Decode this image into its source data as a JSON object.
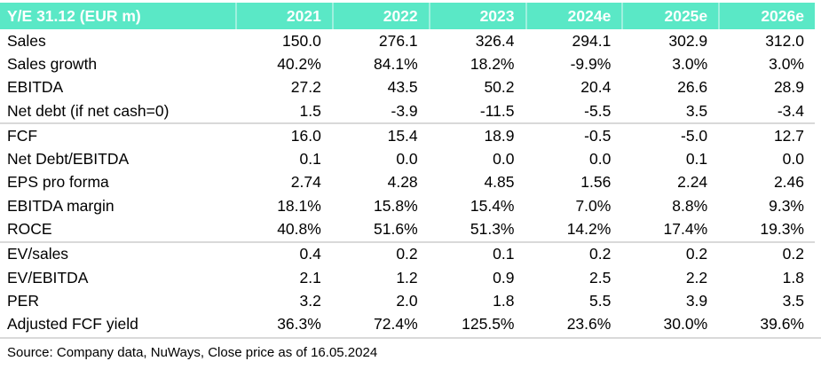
{
  "table": {
    "header": {
      "label": "Y/E 31.12 (EUR m)",
      "columns": [
        "2021",
        "2022",
        "2023",
        "2024e",
        "2025e",
        "2026e"
      ]
    },
    "sections": [
      {
        "rows": [
          {
            "label": "Sales",
            "values": [
              "150.0",
              "276.1",
              "326.4",
              "294.1",
              "302.9",
              "312.0"
            ]
          },
          {
            "label": "Sales growth",
            "values": [
              "40.2%",
              "84.1%",
              "18.2%",
              "-9.9%",
              "3.0%",
              "3.0%"
            ]
          },
          {
            "label": "EBITDA",
            "values": [
              "27.2",
              "43.5",
              "50.2",
              "20.4",
              "26.6",
              "28.9"
            ]
          },
          {
            "label": "Net debt (if net cash=0)",
            "values": [
              "1.5",
              "-3.9",
              "-11.5",
              "-5.5",
              "3.5",
              "-3.4"
            ]
          }
        ]
      },
      {
        "rows": [
          {
            "label": "FCF",
            "values": [
              "16.0",
              "15.4",
              "18.9",
              "-0.5",
              "-5.0",
              "12.7"
            ]
          },
          {
            "label": "Net Debt/EBITDA",
            "values": [
              "0.1",
              "0.0",
              "0.0",
              "0.0",
              "0.1",
              "0.0"
            ]
          },
          {
            "label": "EPS pro forma",
            "values": [
              "2.74",
              "4.28",
              "4.85",
              "1.56",
              "2.24",
              "2.46"
            ]
          },
          {
            "label": "EBITDA margin",
            "values": [
              "18.1%",
              "15.8%",
              "15.4%",
              "7.0%",
              "8.8%",
              "9.3%"
            ]
          },
          {
            "label": "ROCE",
            "values": [
              "40.8%",
              "51.6%",
              "51.3%",
              "14.2%",
              "17.4%",
              "19.3%"
            ]
          }
        ]
      },
      {
        "rows": [
          {
            "label": "EV/sales",
            "values": [
              "0.4",
              "0.2",
              "0.1",
              "0.2",
              "0.2",
              "0.2"
            ]
          },
          {
            "label": "EV/EBITDA",
            "values": [
              "2.1",
              "1.2",
              "0.9",
              "2.5",
              "2.2",
              "1.8"
            ]
          },
          {
            "label": "PER",
            "values": [
              "3.2",
              "2.0",
              "1.8",
              "5.5",
              "3.9",
              "3.5"
            ]
          },
          {
            "label": "Adjusted FCF yield",
            "values": [
              "36.3%",
              "72.4%",
              "125.5%",
              "23.6%",
              "30.0%",
              "39.6%"
            ]
          }
        ]
      }
    ],
    "source": "Source: Company data, NuWays, Close price as of 16.05.2024"
  },
  "colors": {
    "header_bg": "#5AE8C6",
    "header_separator": "#9FF0DE",
    "header_text": "#FFFFFF",
    "divider": "#D9D9D9",
    "body_text": "#000000"
  }
}
